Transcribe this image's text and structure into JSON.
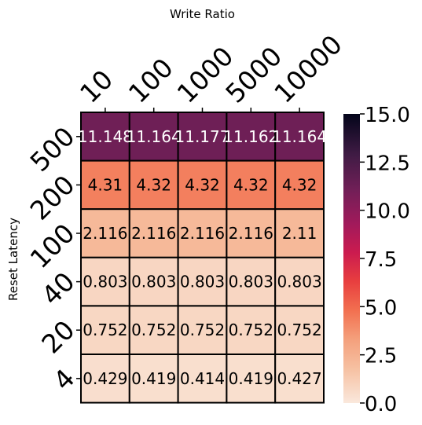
{
  "chart_data": {
    "type": "heatmap",
    "xlabel": "Write Ratio",
    "ylabel": "Reset Latency",
    "x_categories": [
      "10",
      "100",
      "1000",
      "5000",
      "10000"
    ],
    "y_categories": [
      "500",
      "200",
      "100",
      "40",
      "20",
      "4"
    ],
    "cell_labels": [
      [
        "11.148",
        "11.164",
        "11.177",
        "11.162",
        "11.164"
      ],
      [
        "4.31",
        "4.32",
        "4.32",
        "4.32",
        "4.32"
      ],
      [
        "2.116",
        "2.116",
        "2.116",
        "2.116",
        "2.11"
      ],
      [
        "0.803",
        "0.803",
        "0.803",
        "0.803",
        "0.803"
      ],
      [
        "0.752",
        "0.752",
        "0.752",
        "0.752",
        "0.752"
      ],
      [
        "0.429",
        "0.419",
        "0.414",
        "0.419",
        "0.427"
      ]
    ],
    "values": [
      [
        11.148,
        11.164,
        11.177,
        11.162,
        11.164
      ],
      [
        4.31,
        4.32,
        4.32,
        4.32,
        4.32
      ],
      [
        2.116,
        2.116,
        2.116,
        2.116,
        2.11
      ],
      [
        0.803,
        0.803,
        0.803,
        0.803,
        0.803
      ],
      [
        0.752,
        0.752,
        0.752,
        0.752,
        0.752
      ],
      [
        0.429,
        0.419,
        0.414,
        0.419,
        0.427
      ]
    ],
    "colorbar": {
      "min": 0,
      "max": 15,
      "ticks": [
        "0.0",
        "2.5",
        "5.0",
        "7.5",
        "10.0",
        "12.5",
        "15.0"
      ],
      "tick_values": [
        0,
        2.5,
        5,
        7.5,
        10,
        12.5,
        15
      ],
      "colormap_stops": [
        {
          "v": 0.0,
          "color": "#fae8dc"
        },
        {
          "v": 0.12,
          "color": "#f6c0a1"
        },
        {
          "v": 0.22,
          "color": "#f4a07c"
        },
        {
          "v": 0.32,
          "color": "#f27050"
        },
        {
          "v": 0.42,
          "color": "#e83f3f"
        },
        {
          "v": 0.52,
          "color": "#cb1b4f"
        },
        {
          "v": 0.62,
          "color": "#a11a5b"
        },
        {
          "v": 0.74,
          "color": "#701f57"
        },
        {
          "v": 0.86,
          "color": "#3f1b44"
        },
        {
          "v": 1.0,
          "color": "#03051a"
        }
      ]
    },
    "cell_border_color": "#000000",
    "grid": false
  }
}
